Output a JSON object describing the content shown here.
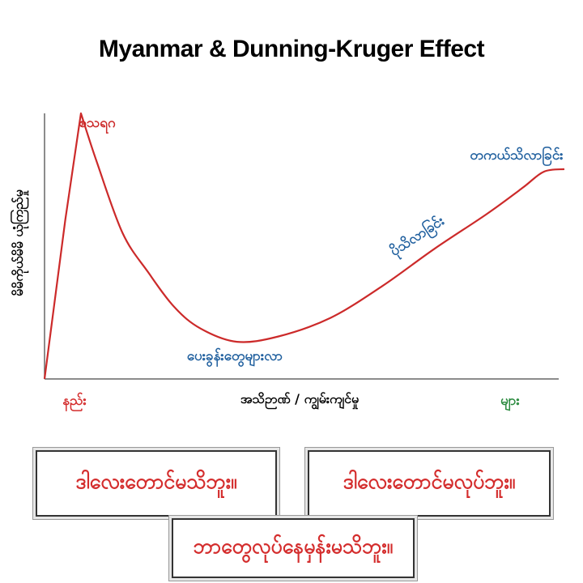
{
  "chart_data": {
    "type": "line",
    "title": "Myanmar & Dunning-Kruger Effect",
    "xlabel": "အသိဉာဏ် / ကျွမ်းကျင်မှု",
    "ylabel": "မိမိကိုယ်မိမိ ယုံကြည်မှု",
    "x_low_label": "နည်း",
    "x_high_label": "များ",
    "xlim": [
      0,
      100
    ],
    "ylim": [
      0,
      100
    ],
    "series": [
      {
        "color": "#cc2a2a",
        "x": [
          0,
          4,
          7,
          10,
          15,
          20,
          25,
          30,
          37,
          45,
          55,
          65,
          75,
          85,
          92,
          96,
          100
        ],
        "y": [
          0,
          60,
          100,
          82,
          55,
          40,
          27,
          19,
          14,
          16,
          23,
          35,
          49,
          62,
          72,
          78,
          79
        ]
      }
    ],
    "annotations": [
      {
        "text": "စသရဂ",
        "color": "#cc2a2a"
      },
      {
        "text": "ပေးခွန်းတွေများလာ",
        "color": "#1f5f9e"
      },
      {
        "text": "ပိုသိလာခြင်း",
        "color": "#1f5f9e"
      },
      {
        "text": "တကယ်သိလာခြင်း",
        "color": "#1f5f9e"
      }
    ],
    "low_color": "#d42d2d",
    "high_color": "#2a8a3e",
    "grid": false
  },
  "boxes": [
    {
      "text": "ဒါလေးတောင်မသိဘူး။"
    },
    {
      "text": "ဒါလေးတောင်မလုပ်ဘူး။"
    },
    {
      "text": "ဘာတွေလုပ်နေမှန်းမသိဘူး။"
    }
  ]
}
